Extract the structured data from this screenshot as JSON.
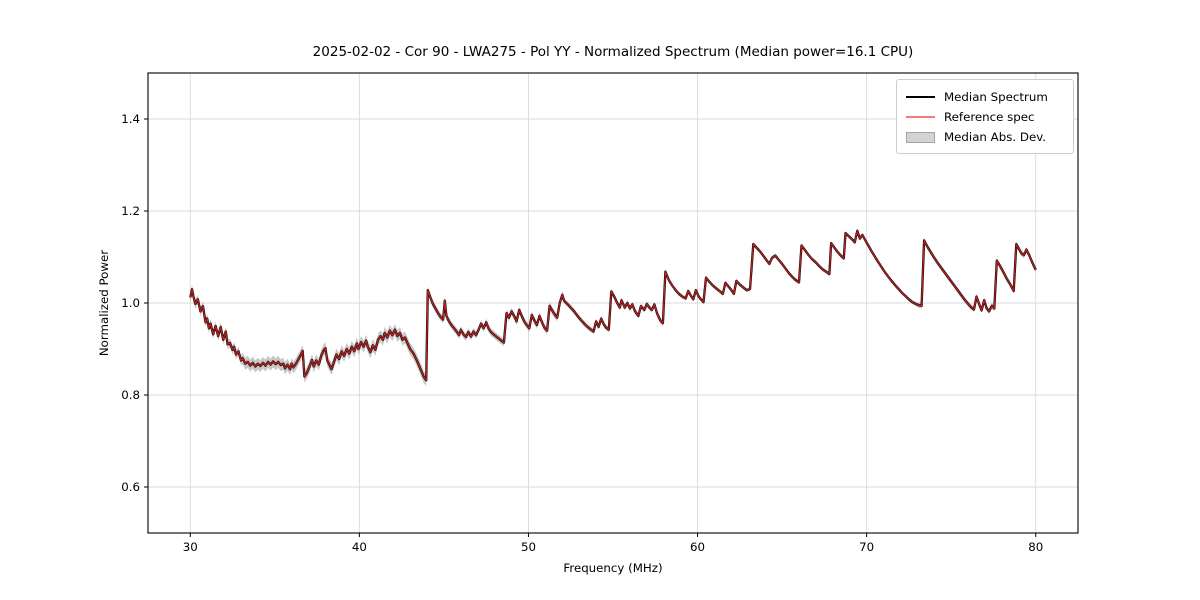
{
  "title": "2025-02-02 - Cor 90 - LWA275 - Pol YY - Normalized Spectrum (Median power=16.1 CPU)",
  "legend": {
    "items": [
      {
        "label": "Median Spectrum",
        "type": "line",
        "color": "#000000"
      },
      {
        "label": "Reference spec",
        "type": "line",
        "color": "#f47c7c"
      },
      {
        "label": "Median Abs. Dev.",
        "type": "patch",
        "color": "#d3d3d3",
        "edge": "#a3a3a3"
      }
    ]
  },
  "chart_data": {
    "type": "line",
    "title": "2025-02-02 - Cor 90 - LWA275 - Pol YY - Normalized Spectrum (Median power=16.1 CPU)",
    "xlabel": "Frequency (MHz)",
    "ylabel": "Normalized Power",
    "xlim": [
      27.5,
      82.5
    ],
    "ylim": [
      0.5,
      1.5
    ],
    "xticks": [
      30,
      40,
      50,
      60,
      70,
      80
    ],
    "yticks": [
      0.6,
      0.8,
      1.0,
      1.2,
      1.4
    ],
    "grid": true,
    "legend_position": "upper right",
    "colors": {
      "median": "#000000",
      "reference": "rgba(235,40,40,0.8)",
      "band": "rgba(125,125,125,0.42)",
      "grid": "#d9d9d9",
      "spine": "#000000"
    },
    "x": [
      30.0,
      30.1,
      30.2,
      30.3,
      30.45,
      30.6,
      30.75,
      30.9,
      31.0,
      31.1,
      31.2,
      31.35,
      31.5,
      31.65,
      31.8,
      31.95,
      32.1,
      32.2,
      32.35,
      32.5,
      32.6,
      32.7,
      32.85,
      33.0,
      33.1,
      33.25,
      33.4,
      33.55,
      33.7,
      33.85,
      34.0,
      34.15,
      34.3,
      34.45,
      34.6,
      34.75,
      34.9,
      35.05,
      35.2,
      35.35,
      35.5,
      35.6,
      35.75,
      35.9,
      36.0,
      36.1,
      36.25,
      36.4,
      36.55,
      36.65,
      36.75,
      36.9,
      37.05,
      37.2,
      37.3,
      37.45,
      37.6,
      37.75,
      37.9,
      38.0,
      38.1,
      38.2,
      38.35,
      38.5,
      38.65,
      38.8,
      38.95,
      39.1,
      39.25,
      39.4,
      39.55,
      39.7,
      39.85,
      39.95,
      40.1,
      40.25,
      40.4,
      40.5,
      40.65,
      40.8,
      40.95,
      41.1,
      41.25,
      41.4,
      41.5,
      41.65,
      41.8,
      41.95,
      42.1,
      42.25,
      42.4,
      42.55,
      42.7,
      42.85,
      43.0,
      43.2,
      43.4,
      43.6,
      43.8,
      43.95,
      44.05,
      44.2,
      44.35,
      44.5,
      44.65,
      44.8,
      44.95,
      45.05,
      45.15,
      45.3,
      45.45,
      45.6,
      45.75,
      45.9,
      46.0,
      46.15,
      46.3,
      46.45,
      46.6,
      46.75,
      46.9,
      47.05,
      47.2,
      47.35,
      47.5,
      47.65,
      47.8,
      48.0,
      48.2,
      48.4,
      48.55,
      48.7,
      48.85,
      49.0,
      49.15,
      49.3,
      49.45,
      49.6,
      49.75,
      49.9,
      50.05,
      50.2,
      50.35,
      50.5,
      50.65,
      50.8,
      50.95,
      51.1,
      51.25,
      51.4,
      51.55,
      51.7,
      51.85,
      52.0,
      52.1,
      52.3,
      52.5,
      52.7,
      52.9,
      53.1,
      53.3,
      53.5,
      53.7,
      53.85,
      54.0,
      54.15,
      54.3,
      54.45,
      54.6,
      54.75,
      54.9,
      55.1,
      55.25,
      55.4,
      55.5,
      55.7,
      55.85,
      56.0,
      56.15,
      56.3,
      56.5,
      56.65,
      56.85,
      57.0,
      57.15,
      57.3,
      57.45,
      57.6,
      57.8,
      57.95,
      58.1,
      58.3,
      58.5,
      58.7,
      58.9,
      59.1,
      59.3,
      59.45,
      59.6,
      59.75,
      59.9,
      60.05,
      60.2,
      60.35,
      60.5,
      60.7,
      60.9,
      61.1,
      61.3,
      61.5,
      61.65,
      61.85,
      62.0,
      62.15,
      62.3,
      62.5,
      62.7,
      62.9,
      63.1,
      63.3,
      63.5,
      63.7,
      63.9,
      64.1,
      64.25,
      64.4,
      64.6,
      64.8,
      65.0,
      65.2,
      65.4,
      65.6,
      65.8,
      66.0,
      66.15,
      66.35,
      66.55,
      66.75,
      67.0,
      67.2,
      67.4,
      67.6,
      67.8,
      67.9,
      68.1,
      68.3,
      68.5,
      68.65,
      68.75,
      68.95,
      69.15,
      69.3,
      69.45,
      69.6,
      69.75,
      69.9,
      70.1,
      70.3,
      70.5,
      70.7,
      70.9,
      71.1,
      71.3,
      71.5,
      71.7,
      71.9,
      72.1,
      72.3,
      72.5,
      72.7,
      72.9,
      73.1,
      73.25,
      73.4,
      73.6,
      73.8,
      74.0,
      74.2,
      74.4,
      74.6,
      74.8,
      75.0,
      75.2,
      75.4,
      75.6,
      75.8,
      76.0,
      76.2,
      76.35,
      76.5,
      76.65,
      76.8,
      76.95,
      77.1,
      77.25,
      77.4,
      77.55,
      77.7,
      77.9,
      78.1,
      78.3,
      78.5,
      78.7,
      78.85,
      79.0,
      79.15,
      79.3,
      79.45,
      79.6,
      79.8,
      80.0
    ],
    "y": [
      1.012,
      1.03,
      1.012,
      0.998,
      1.008,
      0.982,
      0.993,
      0.958,
      0.966,
      0.945,
      0.955,
      0.932,
      0.95,
      0.928,
      0.948,
      0.92,
      0.938,
      0.91,
      0.913,
      0.898,
      0.905,
      0.888,
      0.895,
      0.875,
      0.88,
      0.868,
      0.872,
      0.864,
      0.87,
      0.862,
      0.868,
      0.863,
      0.87,
      0.864,
      0.872,
      0.866,
      0.873,
      0.867,
      0.872,
      0.865,
      0.868,
      0.858,
      0.866,
      0.856,
      0.868,
      0.86,
      0.868,
      0.878,
      0.888,
      0.896,
      0.84,
      0.848,
      0.862,
      0.876,
      0.862,
      0.875,
      0.866,
      0.886,
      0.898,
      0.902,
      0.875,
      0.868,
      0.856,
      0.872,
      0.888,
      0.878,
      0.895,
      0.885,
      0.9,
      0.89,
      0.905,
      0.895,
      0.912,
      0.9,
      0.915,
      0.905,
      0.918,
      0.905,
      0.893,
      0.908,
      0.898,
      0.92,
      0.928,
      0.92,
      0.935,
      0.925,
      0.94,
      0.93,
      0.942,
      0.928,
      0.935,
      0.92,
      0.925,
      0.912,
      0.9,
      0.89,
      0.875,
      0.858,
      0.84,
      0.832,
      1.028,
      1.012,
      0.998,
      0.988,
      0.978,
      0.97,
      0.964,
      1.005,
      0.972,
      0.96,
      0.952,
      0.945,
      0.938,
      0.93,
      0.942,
      0.932,
      0.926,
      0.937,
      0.927,
      0.938,
      0.93,
      0.942,
      0.955,
      0.945,
      0.958,
      0.944,
      0.936,
      0.93,
      0.924,
      0.918,
      0.914,
      0.978,
      0.968,
      0.982,
      0.972,
      0.96,
      0.985,
      0.972,
      0.96,
      0.952,
      0.945,
      0.974,
      0.962,
      0.952,
      0.972,
      0.958,
      0.946,
      0.94,
      0.994,
      0.984,
      0.975,
      0.968,
      1.0,
      1.018,
      1.005,
      0.998,
      0.99,
      0.982,
      0.972,
      0.963,
      0.955,
      0.948,
      0.942,
      0.938,
      0.96,
      0.948,
      0.966,
      0.954,
      0.946,
      0.942,
      1.025,
      1.012,
      1.0,
      0.99,
      1.006,
      0.99,
      1.0,
      0.988,
      0.997,
      0.982,
      0.972,
      0.993,
      0.985,
      0.998,
      0.99,
      0.985,
      0.997,
      0.978,
      0.962,
      0.956,
      1.068,
      1.05,
      1.038,
      1.028,
      1.02,
      1.014,
      1.01,
      1.026,
      1.016,
      1.008,
      1.028,
      1.015,
      1.008,
      1.002,
      1.055,
      1.046,
      1.038,
      1.032,
      1.026,
      1.02,
      1.044,
      1.035,
      1.028,
      1.02,
      1.048,
      1.04,
      1.034,
      1.028,
      1.03,
      1.128,
      1.12,
      1.112,
      1.102,
      1.092,
      1.085,
      1.098,
      1.103,
      1.094,
      1.085,
      1.075,
      1.065,
      1.057,
      1.05,
      1.045,
      1.125,
      1.115,
      1.105,
      1.096,
      1.088,
      1.08,
      1.073,
      1.068,
      1.063,
      1.13,
      1.12,
      1.11,
      1.102,
      1.097,
      1.152,
      1.145,
      1.138,
      1.132,
      1.157,
      1.14,
      1.148,
      1.138,
      1.125,
      1.112,
      1.1,
      1.088,
      1.077,
      1.066,
      1.056,
      1.047,
      1.038,
      1.03,
      1.022,
      1.015,
      1.008,
      1.002,
      0.998,
      0.995,
      0.994,
      1.136,
      1.122,
      1.11,
      1.098,
      1.087,
      1.077,
      1.067,
      1.057,
      1.047,
      1.037,
      1.027,
      1.017,
      1.007,
      0.998,
      0.99,
      0.986,
      1.014,
      0.998,
      0.984,
      1.006,
      0.988,
      0.982,
      0.994,
      0.988,
      1.092,
      1.08,
      1.066,
      1.052,
      1.04,
      1.026,
      1.128,
      1.118,
      1.108,
      1.104,
      1.116,
      1.105,
      1.088,
      1.072
    ],
    "mad_segments": [
      [
        30,
        33,
        0.01
      ],
      [
        33,
        44,
        0.013
      ],
      [
        44,
        52,
        0.008
      ],
      [
        52,
        58,
        0.006
      ],
      [
        58,
        73,
        0.0045
      ],
      [
        73,
        80.5,
        0.006
      ]
    ],
    "series": [
      {
        "name": "Median Spectrum"
      },
      {
        "name": "Reference spec"
      },
      {
        "name": "Median Abs. Dev."
      }
    ]
  }
}
